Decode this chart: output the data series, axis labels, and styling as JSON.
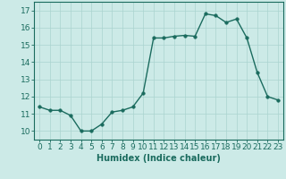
{
  "x": [
    0,
    1,
    2,
    3,
    4,
    5,
    6,
    7,
    8,
    9,
    10,
    11,
    12,
    13,
    14,
    15,
    16,
    17,
    18,
    19,
    20,
    21,
    22,
    23
  ],
  "y": [
    11.4,
    11.2,
    11.2,
    10.9,
    10.0,
    10.0,
    10.4,
    11.1,
    11.2,
    11.4,
    12.2,
    15.4,
    15.4,
    15.5,
    15.55,
    15.5,
    16.8,
    16.7,
    16.3,
    16.5,
    15.4,
    13.4,
    12.0,
    11.8
  ],
  "xlabel": "Humidex (Indice chaleur)",
  "xlim": [
    -0.5,
    23.5
  ],
  "ylim": [
    9.5,
    17.5
  ],
  "yticks": [
    10,
    11,
    12,
    13,
    14,
    15,
    16,
    17
  ],
  "xticks": [
    0,
    1,
    2,
    3,
    4,
    5,
    6,
    7,
    8,
    9,
    10,
    11,
    12,
    13,
    14,
    15,
    16,
    17,
    18,
    19,
    20,
    21,
    22,
    23
  ],
  "line_color": "#1a6b5e",
  "marker_size": 2.5,
  "bg_color": "#cceae7",
  "grid_color": "#aad4d0",
  "xlabel_fontsize": 7,
  "tick_fontsize": 6.5,
  "linewidth": 1.0
}
